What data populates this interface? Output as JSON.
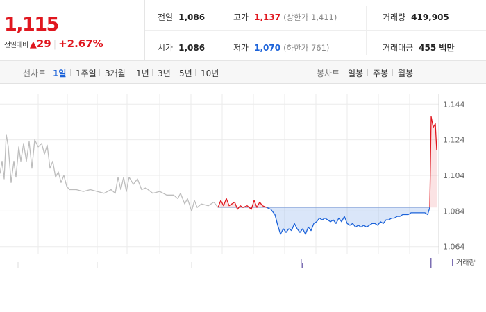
{
  "quote": {
    "price": "1,115",
    "change_label": "전일대비",
    "change_arrow": "▲",
    "change_value": "29",
    "change_sep": "|",
    "change_pct": "+2.67%",
    "cells": [
      {
        "label": "전일",
        "value": "1,086",
        "sub": "",
        "tone": ""
      },
      {
        "label": "고가",
        "value": "1,137",
        "sub": "(상한가 1,411)",
        "tone": "up"
      },
      {
        "label": "거래량",
        "value": "419,905",
        "sub": "",
        "tone": ""
      },
      {
        "label": "시가",
        "value": "1,086",
        "sub": "",
        "tone": ""
      },
      {
        "label": "저가",
        "value": "1,070",
        "sub": "(하한가 761)",
        "tone": "dn"
      },
      {
        "label": "거래대금",
        "value": "455 백만",
        "sub": "",
        "tone": ""
      }
    ]
  },
  "toolbar": {
    "line_label": "선차트",
    "line_options": [
      "1일",
      "1주일",
      "3개월",
      "1년",
      "3년",
      "5년",
      "10년"
    ],
    "line_selected": "1일",
    "candle_label": "봉차트",
    "candle_options": [
      "일봉",
      "주봉",
      "월봉"
    ]
  },
  "colors": {
    "up": "#e0171f",
    "down": "#1b62d9",
    "flat": "#bdbdbd",
    "grid": "#ebebeb",
    "volume": "#7c6fb3"
  },
  "chart_data": {
    "type": "line",
    "ylim": [
      1060,
      1148
    ],
    "yticks": [
      1064,
      1084,
      1104,
      1124,
      1144
    ],
    "ytick_labels": [
      "1,064",
      "1,084",
      "1,104",
      "1,124",
      "1,144"
    ],
    "baseline": 1086,
    "legend": "거래량",
    "segments": [
      {
        "trend": "flat",
        "points": [
          [
            0,
            1105
          ],
          [
            3,
            1112
          ],
          [
            6,
            1102
          ],
          [
            9,
            1127
          ],
          [
            12,
            1120
          ],
          [
            16,
            1100
          ],
          [
            20,
            1112
          ],
          [
            23,
            1103
          ],
          [
            27,
            1120
          ],
          [
            30,
            1112
          ],
          [
            34,
            1122
          ],
          [
            38,
            1112
          ],
          [
            42,
            1123
          ],
          [
            46,
            1108
          ],
          [
            50,
            1124
          ],
          [
            55,
            1120
          ],
          [
            60,
            1122
          ],
          [
            64,
            1116
          ],
          [
            68,
            1121
          ],
          [
            72,
            1108
          ],
          [
            76,
            1112
          ],
          [
            80,
            1103
          ],
          [
            84,
            1106
          ],
          [
            88,
            1100
          ],
          [
            92,
            1104
          ],
          [
            96,
            1098
          ],
          [
            100,
            1096
          ],
          [
            110,
            1096
          ],
          [
            120,
            1095
          ],
          [
            130,
            1096
          ],
          [
            140,
            1095
          ],
          [
            150,
            1094
          ],
          [
            160,
            1096
          ],
          [
            166,
            1094
          ],
          [
            170,
            1103
          ],
          [
            174,
            1096
          ],
          [
            178,
            1103
          ],
          [
            182,
            1095
          ],
          [
            186,
            1103
          ],
          [
            192,
            1099
          ],
          [
            198,
            1102
          ],
          [
            204,
            1096
          ],
          [
            210,
            1097
          ],
          [
            220,
            1094
          ],
          [
            230,
            1095
          ],
          [
            240,
            1093
          ],
          [
            250,
            1093
          ],
          [
            256,
            1091
          ],
          [
            260,
            1094
          ],
          [
            266,
            1088
          ],
          [
            270,
            1091
          ],
          [
            276,
            1084
          ],
          [
            280,
            1090
          ],
          [
            284,
            1086
          ],
          [
            290,
            1088
          ],
          [
            300,
            1087
          ],
          [
            308,
            1089
          ],
          [
            314,
            1086
          ]
        ]
      },
      {
        "trend": "up",
        "points": [
          [
            314,
            1086
          ],
          [
            318,
            1090
          ],
          [
            322,
            1087
          ],
          [
            326,
            1091
          ],
          [
            330,
            1087
          ],
          [
            334,
            1088
          ],
          [
            338,
            1089
          ],
          [
            342,
            1085
          ],
          [
            346,
            1087
          ],
          [
            350,
            1086
          ],
          [
            356,
            1087
          ],
          [
            362,
            1085
          ],
          [
            366,
            1090
          ],
          [
            370,
            1086
          ],
          [
            374,
            1089
          ],
          [
            378,
            1087
          ],
          [
            384,
            1086
          ]
        ]
      },
      {
        "trend": "down",
        "points": [
          [
            384,
            1086
          ],
          [
            390,
            1085
          ],
          [
            396,
            1082
          ],
          [
            400,
            1076
          ],
          [
            404,
            1071
          ],
          [
            408,
            1074
          ],
          [
            412,
            1072
          ],
          [
            416,
            1074
          ],
          [
            420,
            1073
          ],
          [
            424,
            1077
          ],
          [
            428,
            1074
          ],
          [
            432,
            1072
          ],
          [
            436,
            1074
          ],
          [
            440,
            1071
          ],
          [
            444,
            1075
          ],
          [
            448,
            1073
          ],
          [
            452,
            1077
          ],
          [
            456,
            1078
          ],
          [
            460,
            1080
          ],
          [
            464,
            1079
          ],
          [
            468,
            1080
          ],
          [
            472,
            1079
          ],
          [
            476,
            1078
          ],
          [
            480,
            1079
          ],
          [
            484,
            1077
          ],
          [
            488,
            1080
          ],
          [
            492,
            1078
          ],
          [
            496,
            1081
          ],
          [
            500,
            1077
          ],
          [
            504,
            1076
          ],
          [
            508,
            1077
          ],
          [
            512,
            1075
          ],
          [
            516,
            1076
          ],
          [
            520,
            1075
          ],
          [
            524,
            1076
          ],
          [
            528,
            1075
          ],
          [
            532,
            1076
          ],
          [
            536,
            1077
          ],
          [
            540,
            1077
          ],
          [
            544,
            1076
          ],
          [
            548,
            1078
          ],
          [
            552,
            1077
          ],
          [
            556,
            1079
          ],
          [
            560,
            1079
          ],
          [
            564,
            1080
          ],
          [
            568,
            1080
          ],
          [
            572,
            1081
          ],
          [
            576,
            1081
          ],
          [
            580,
            1082
          ],
          [
            584,
            1082
          ],
          [
            588,
            1082
          ],
          [
            592,
            1083
          ],
          [
            596,
            1083
          ],
          [
            600,
            1083
          ],
          [
            604,
            1083
          ],
          [
            608,
            1083
          ],
          [
            612,
            1083
          ],
          [
            616,
            1082
          ],
          [
            619,
            1086
          ]
        ]
      },
      {
        "trend": "up",
        "points": [
          [
            619,
            1086
          ],
          [
            621,
            1137
          ],
          [
            624,
            1131
          ],
          [
            627,
            1133
          ],
          [
            629,
            1118
          ]
        ]
      }
    ]
  }
}
